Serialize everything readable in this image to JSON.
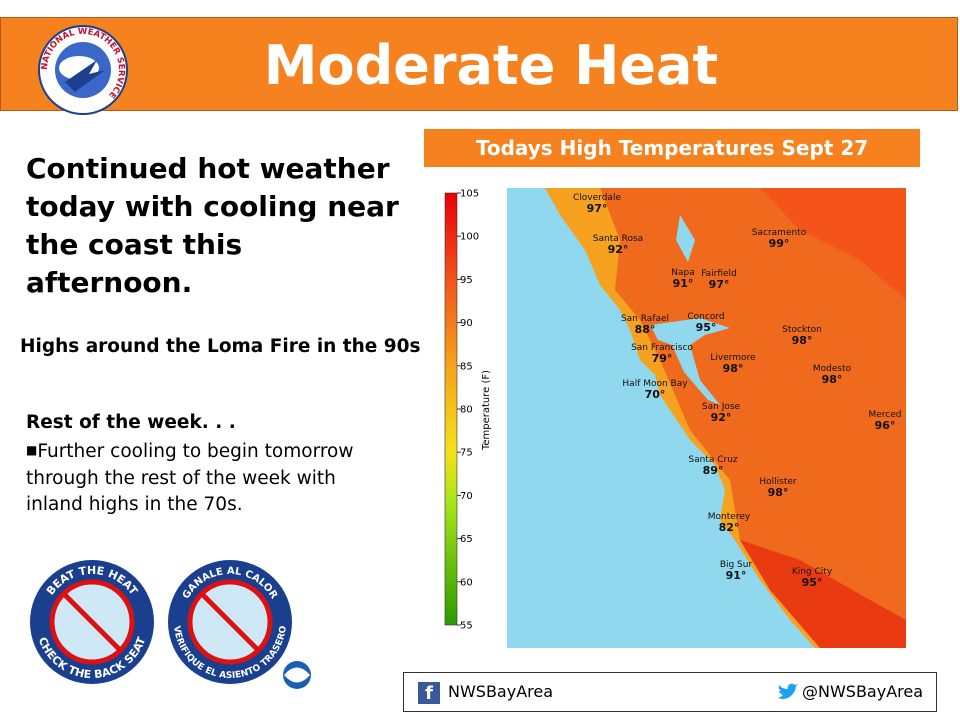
{
  "header": {
    "title": "Moderate Heat",
    "logo_text": "NATIONAL WEATHER SERVICE"
  },
  "summary": {
    "lead": "Continued hot weather today with cooling near the coast this afternoon.",
    "fire_note": "Highs around the Loma Fire in the 90s",
    "outlook_title": "Rest of the week. . .",
    "outlook_text": "Further cooling to begin tomorrow through the rest of the week with inland highs in the 70s."
  },
  "map": {
    "title": "Todays High Temperatures Sept 27",
    "colorbar_label": "Temperature (F)",
    "colorbar_ticks": [
      105,
      100,
      95,
      90,
      85,
      80,
      75,
      70,
      65,
      60,
      55
    ],
    "cities": [
      {
        "name": "Cloverdale",
        "temp": "97°"
      },
      {
        "name": "Santa Rosa",
        "temp": "92°"
      },
      {
        "name": "Sacramento",
        "temp": "99°"
      },
      {
        "name": "Napa",
        "temp": "91°"
      },
      {
        "name": "Fairfield",
        "temp": "97°"
      },
      {
        "name": "San Rafael",
        "temp": "88°"
      },
      {
        "name": "Concord",
        "temp": "95°"
      },
      {
        "name": "Stockton",
        "temp": "98°"
      },
      {
        "name": "San Francisco",
        "temp": "79°"
      },
      {
        "name": "Livermore",
        "temp": "98°"
      },
      {
        "name": "Modesto",
        "temp": "98°"
      },
      {
        "name": "Half Moon Bay",
        "temp": "70°"
      },
      {
        "name": "San Jose",
        "temp": "92°"
      },
      {
        "name": "Merced",
        "temp": "96°"
      },
      {
        "name": "Santa Cruz",
        "temp": "89°"
      },
      {
        "name": "Hollister",
        "temp": "98°"
      },
      {
        "name": "Monterey",
        "temp": "82°"
      },
      {
        "name": "Big Sur",
        "temp": "91°"
      },
      {
        "name": "King City",
        "temp": "95°"
      }
    ]
  },
  "badges": [
    {
      "top": "BEAT THE HEAT",
      "bottom": "CHECK THE BACK SEAT"
    },
    {
      "top": "GANALE AL CALOR",
      "bottom": "VERIFIQUE EL ASIENTO TRASERO"
    }
  ],
  "social": {
    "facebook": "NWSBayArea",
    "twitter": "@NWSBayArea"
  }
}
